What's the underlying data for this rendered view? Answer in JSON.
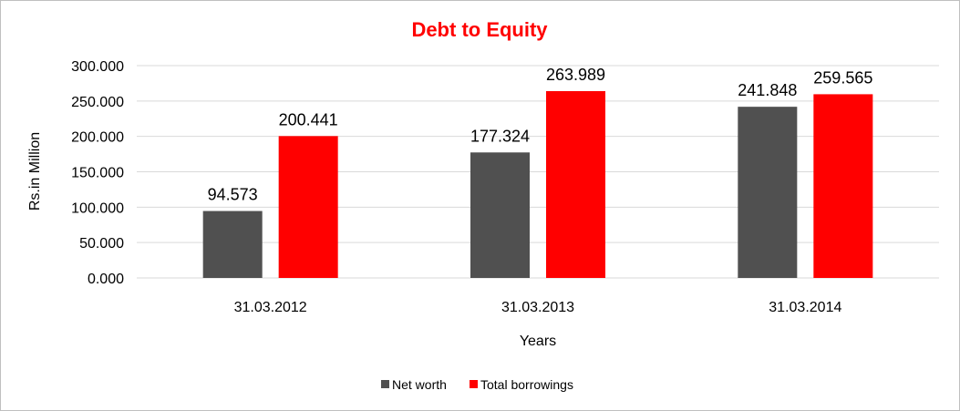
{
  "colors": {
    "title": "#ff0000",
    "series_networth": "#505050",
    "series_borrowings": "#ff0000",
    "gridline": "#d9d9d9"
  },
  "chart_data": {
    "type": "bar",
    "title": "Debt to Equity",
    "xlabel": "Years",
    "ylabel": "Rs.in Million",
    "categories": [
      "31.03.2012",
      "31.03.2013",
      "31.03.2014"
    ],
    "series": [
      {
        "name": "Net worth",
        "values": [
          94.573,
          177.324,
          241.848
        ],
        "labels": [
          "94.573",
          "177.324",
          "241.848"
        ]
      },
      {
        "name": "Total borrowings",
        "values": [
          200.441,
          263.989,
          259.565
        ],
        "labels": [
          "200.441",
          "263.989",
          "259.565"
        ]
      }
    ],
    "ylim": [
      0,
      300
    ],
    "yticks": [
      "0.000",
      "50.000",
      "100.000",
      "150.000",
      "200.000",
      "250.000",
      "300.000"
    ],
    "grid": true,
    "legend": "bottom"
  }
}
